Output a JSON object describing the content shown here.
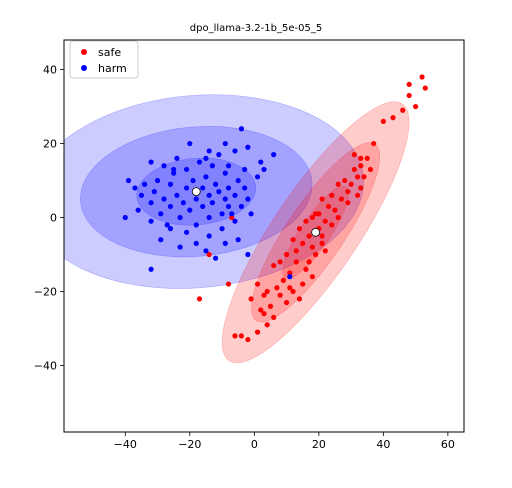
{
  "chart_data": {
    "type": "scatter",
    "title": "dpo_llama-3.2-1b_5e-05_5",
    "xlabel": "",
    "ylabel": "",
    "xlim": [
      -59,
      65
    ],
    "ylim": [
      -58,
      48
    ],
    "xticks": [
      -40,
      -20,
      0,
      20,
      40,
      60
    ],
    "yticks": [
      -40,
      -20,
      0,
      20,
      40
    ],
    "grid": false,
    "legend_position": "top-left",
    "series": [
      {
        "name": "safe",
        "color": "#ff0000",
        "mean": [
          19,
          -4
        ],
        "ellipses": [
          {
            "cx": 19,
            "cy": -4,
            "rx": 48,
            "ry": 11.5,
            "angle_deg": 56
          },
          {
            "cx": 19,
            "cy": -4,
            "rx": 33,
            "ry": 7.8,
            "angle_deg": 56
          },
          {
            "cx": 19,
            "cy": -4,
            "rx": 17,
            "ry": 4.0,
            "angle_deg": 56
          }
        ],
        "points": [
          [
            52,
            38
          ],
          [
            48,
            36
          ],
          [
            53,
            35
          ],
          [
            48,
            33
          ],
          [
            50,
            30
          ],
          [
            43,
            27
          ],
          [
            46,
            29
          ],
          [
            40,
            26
          ],
          [
            37,
            20
          ],
          [
            33,
            16
          ],
          [
            33,
            14
          ],
          [
            31,
            13
          ],
          [
            34,
            11
          ],
          [
            32,
            11
          ],
          [
            28,
            10
          ],
          [
            30,
            9
          ],
          [
            26,
            9
          ],
          [
            33,
            8
          ],
          [
            29,
            7
          ],
          [
            32,
            6
          ],
          [
            27,
            5
          ],
          [
            24,
            6
          ],
          [
            21,
            5
          ],
          [
            23,
            3
          ],
          [
            25,
            2
          ],
          [
            20,
            1
          ],
          [
            22,
            -1
          ],
          [
            18,
            0
          ],
          [
            19,
            1
          ],
          [
            16,
            -1
          ],
          [
            20,
            -3
          ],
          [
            21,
            -5
          ],
          [
            17,
            -5
          ],
          [
            14,
            -3
          ],
          [
            18,
            -8
          ],
          [
            15,
            -7
          ],
          [
            12,
            -6
          ],
          [
            19,
            -10
          ],
          [
            13,
            -12
          ],
          [
            16,
            -14
          ],
          [
            10,
            -10
          ],
          [
            8,
            -12
          ],
          [
            11,
            -15
          ],
          [
            6,
            -13
          ],
          [
            9,
            -17
          ],
          [
            7,
            -19
          ],
          [
            4,
            -20
          ],
          [
            12,
            -20
          ],
          [
            14,
            -22
          ],
          [
            10,
            -23
          ],
          [
            5,
            -24
          ],
          [
            3,
            -21
          ],
          [
            1,
            -18
          ],
          [
            -1,
            -22
          ],
          [
            2,
            -25
          ],
          [
            6,
            -27
          ],
          [
            4,
            -29
          ],
          [
            1,
            -31
          ],
          [
            -2,
            -33
          ],
          [
            -4,
            -32
          ],
          [
            -6,
            -32
          ],
          [
            -8,
            -18
          ],
          [
            -17,
            -22
          ],
          [
            -14,
            -10
          ],
          [
            -7,
            0
          ],
          [
            17,
            -12
          ],
          [
            22,
            -9
          ],
          [
            15,
            -18
          ],
          [
            26,
            0
          ],
          [
            29,
            4
          ],
          [
            36,
            13
          ],
          [
            31,
            17
          ],
          [
            35,
            16
          ],
          [
            24,
            -2
          ],
          [
            11,
            -19
          ],
          [
            8,
            -21
          ],
          [
            3,
            -26
          ],
          [
            18,
            -16
          ],
          [
            21,
            -7
          ],
          [
            13,
            -9
          ]
        ]
      },
      {
        "name": "harm",
        "color": "#0000ff",
        "mean": [
          -18,
          7
        ],
        "ellipses": [
          {
            "cx": -18,
            "cy": 7,
            "rx": 52,
            "ry": 26,
            "angle_deg": 5
          },
          {
            "cx": -18,
            "cy": 7,
            "rx": 36,
            "ry": 17.5,
            "angle_deg": 5
          },
          {
            "cx": -18,
            "cy": 7,
            "rx": 18.5,
            "ry": 9,
            "angle_deg": 5
          }
        ],
        "points": [
          [
            -4,
            24
          ],
          [
            -9,
            20
          ],
          [
            -20,
            20
          ],
          [
            -2,
            19
          ],
          [
            -14,
            18
          ],
          [
            -6,
            18
          ],
          [
            -11,
            17
          ],
          [
            6,
            17
          ],
          [
            -24,
            16
          ],
          [
            2,
            15
          ],
          [
            -17,
            15
          ],
          [
            -32,
            15
          ],
          [
            -28,
            14
          ],
          [
            -8,
            14
          ],
          [
            -13,
            14
          ],
          [
            -21,
            13
          ],
          [
            3,
            13
          ],
          [
            -3,
            13
          ],
          [
            -25,
            12
          ],
          [
            -9,
            12
          ],
          [
            -15,
            11
          ],
          [
            1,
            11
          ],
          [
            -39,
            10
          ],
          [
            -30,
            10
          ],
          [
            -5,
            10
          ],
          [
            -19,
            10
          ],
          [
            -34,
            9
          ],
          [
            -12,
            9
          ],
          [
            -26,
            9
          ],
          [
            -16,
            8
          ],
          [
            -8,
            8
          ],
          [
            -3,
            8
          ],
          [
            -21,
            8
          ],
          [
            -31,
            7
          ],
          [
            -11,
            7
          ],
          [
            -35,
            6
          ],
          [
            -24,
            6
          ],
          [
            -14,
            6
          ],
          [
            -6,
            6
          ],
          [
            -28,
            5
          ],
          [
            -18,
            5
          ],
          [
            -9,
            5
          ],
          [
            -2,
            5
          ],
          [
            -22,
            4
          ],
          [
            -13,
            4
          ],
          [
            -32,
            4
          ],
          [
            -4,
            3
          ],
          [
            -26,
            3
          ],
          [
            -16,
            3
          ],
          [
            -8,
            3
          ],
          [
            -20,
            2
          ],
          [
            -36,
            2
          ],
          [
            -10,
            1
          ],
          [
            -29,
            1
          ],
          [
            -1,
            1
          ],
          [
            -23,
            0
          ],
          [
            -14,
            0
          ],
          [
            -40,
            0
          ],
          [
            -6,
            -1
          ],
          [
            -32,
            -1
          ],
          [
            -18,
            -2
          ],
          [
            -26,
            -3
          ],
          [
            -10,
            -3
          ],
          [
            -21,
            -4
          ],
          [
            -14,
            -5
          ],
          [
            -5,
            -6
          ],
          [
            -29,
            -6
          ],
          [
            -18,
            -7
          ],
          [
            -9,
            -7
          ],
          [
            -23,
            -8
          ],
          [
            -15,
            -9
          ],
          [
            -2,
            -10
          ],
          [
            -12,
            -11
          ],
          [
            -32,
            -14
          ],
          [
            11,
            -16
          ],
          [
            -25,
            13
          ],
          [
            -37,
            8
          ],
          [
            -15,
            16
          ],
          [
            -7,
            1
          ],
          [
            -27,
            -2
          ]
        ]
      }
    ]
  }
}
